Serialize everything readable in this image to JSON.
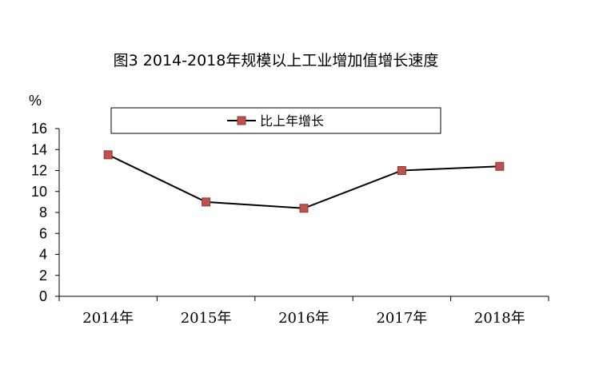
{
  "chart_data": {
    "type": "line",
    "title": "图3  2014-2018年规模以上工业增加值增长速度",
    "ylabel": "%",
    "xlabel": "",
    "categories": [
      "2014年",
      "2015年",
      "2016年",
      "2017年",
      "2018年"
    ],
    "series": [
      {
        "name": "比上年增长",
        "values": [
          13.5,
          9.0,
          8.4,
          12.0,
          12.4
        ]
      }
    ],
    "ylim": [
      0,
      16
    ],
    "yticks": [
      "0",
      "2",
      "4",
      "6",
      "8",
      "10",
      "12",
      "14",
      "16"
    ],
    "grid": false,
    "legend_position": "top",
    "colors": {
      "line": "#000000",
      "marker": "#c0504d",
      "marker_edge": "#8b3a37"
    }
  }
}
